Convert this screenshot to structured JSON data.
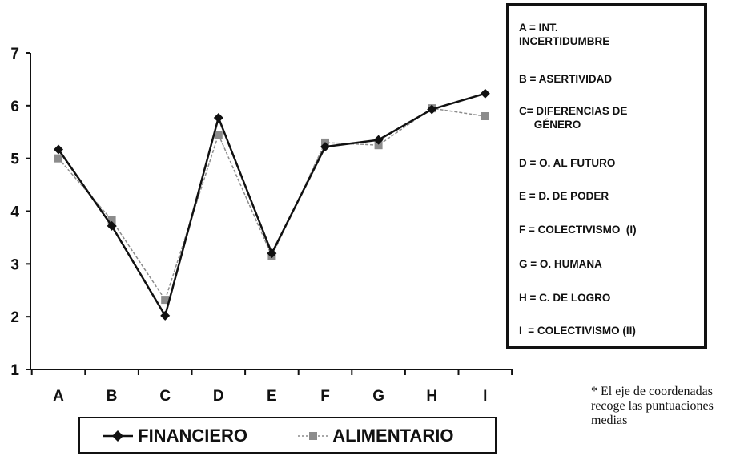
{
  "chart_data": {
    "type": "line",
    "categories": [
      "A",
      "B",
      "C",
      "D",
      "E",
      "F",
      "G",
      "H",
      "I"
    ],
    "series": [
      {
        "name": "FINANCIERO",
        "values": [
          5.17,
          3.72,
          2.02,
          5.77,
          3.2,
          5.22,
          5.35,
          5.93,
          6.23
        ],
        "color": "#111111",
        "marker": "diamond"
      },
      {
        "name": "ALIMENTARIO",
        "values": [
          5.0,
          3.83,
          2.32,
          5.45,
          3.15,
          5.3,
          5.25,
          5.95,
          5.8
        ],
        "color": "#8c8c8c",
        "marker": "square"
      }
    ],
    "yticks": [
      "1",
      "2",
      "3",
      "4",
      "5",
      "6",
      "7"
    ],
    "ylim": [
      1,
      7
    ],
    "grid": false,
    "legend_position": "bottom"
  },
  "key": {
    "items": [
      "A = INT.\nINCERTIDUMBRE",
      "B = ASERTIVIDAD",
      "C= DIFERENCIAS DE\n     GÉNERO",
      "D = O. AL FUTURO",
      "E = D. DE PODER",
      "F = COLECTIVISMO  (I)",
      "G = O. HUMANA",
      "H = C. DE LOGRO",
      "I  = COLECTIVISMO (II)"
    ]
  },
  "note": "* El eje de coordenadas recoge las puntuaciones medias"
}
